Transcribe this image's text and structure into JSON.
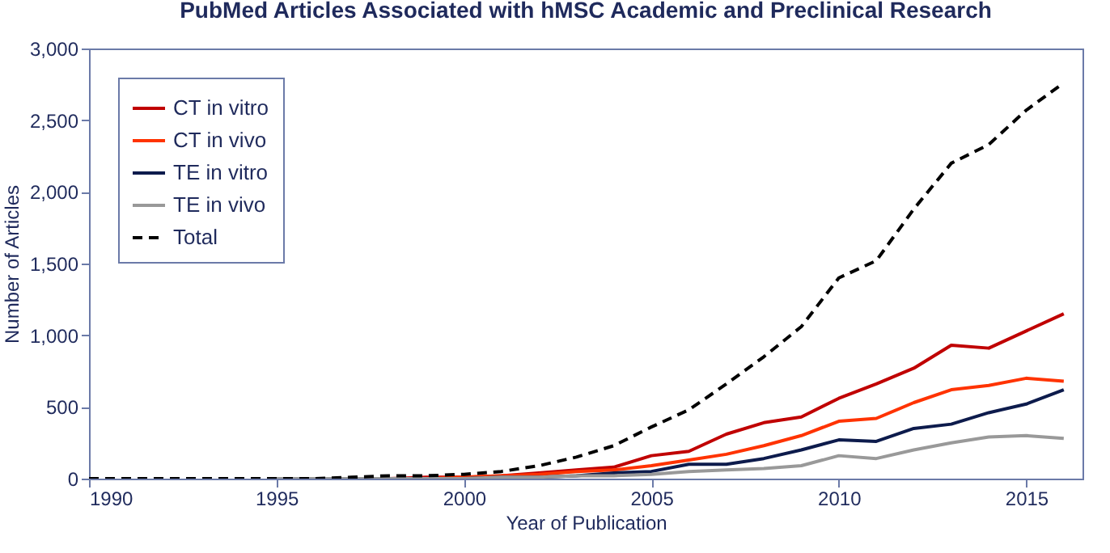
{
  "chart_data": {
    "type": "line",
    "title": "PubMed Articles Associated with hMSC Academic and Preclinical Research",
    "xlabel": "Year of Publication",
    "ylabel": "Number of Articles",
    "x": [
      1990,
      1991,
      1992,
      1993,
      1994,
      1995,
      1996,
      1997,
      1998,
      1999,
      2000,
      2001,
      2002,
      2003,
      2004,
      2005,
      2006,
      2007,
      2008,
      2009,
      2010,
      2011,
      2012,
      2013,
      2014,
      2015,
      2016
    ],
    "series": [
      {
        "name": "CT in vitro",
        "color": "#c00000",
        "values": [
          null,
          null,
          null,
          null,
          null,
          null,
          null,
          0,
          0,
          10,
          10,
          20,
          40,
          60,
          80,
          160,
          190,
          310,
          390,
          430,
          560,
          660,
          770,
          930,
          910,
          1030,
          1150
        ]
      },
      {
        "name": "CT in vivo",
        "color": "#ff3300",
        "values": [
          null,
          null,
          null,
          null,
          null,
          null,
          null,
          null,
          0,
          0,
          10,
          20,
          30,
          50,
          60,
          90,
          130,
          170,
          230,
          300,
          400,
          420,
          530,
          620,
          650,
          700,
          680
        ]
      },
      {
        "name": "TE in vitro",
        "color": "#0d1b4c",
        "values": [
          null,
          null,
          null,
          null,
          null,
          0,
          0,
          0,
          0,
          0,
          0,
          10,
          10,
          20,
          40,
          50,
          100,
          100,
          140,
          200,
          270,
          260,
          350,
          380,
          460,
          520,
          620
        ]
      },
      {
        "name": "TE in vivo",
        "color": "#999999",
        "values": [
          null,
          null,
          null,
          null,
          null,
          0,
          0,
          0,
          0,
          0,
          0,
          10,
          10,
          20,
          20,
          30,
          50,
          60,
          70,
          90,
          160,
          140,
          200,
          250,
          290,
          300,
          280
        ]
      },
      {
        "name": "Total",
        "color": "#000000",
        "line_style": "dashed",
        "values": [
          0,
          0,
          0,
          0,
          0,
          0,
          0,
          10,
          20,
          20,
          30,
          50,
          90,
          150,
          230,
          360,
          480,
          660,
          850,
          1060,
          1400,
          1520,
          1880,
          2200,
          2330,
          2570,
          2760
        ]
      }
    ],
    "xlim": [
      1990,
      2016.5
    ],
    "xticks": [
      1990,
      1995,
      2000,
      2005,
      2010,
      2015
    ],
    "ylim": [
      0,
      3000
    ],
    "yticks": [
      0,
      500,
      {
        "value": 1000,
        "label": "1,000"
      },
      {
        "value": 1500,
        "label": "1,500"
      },
      {
        "value": 2000,
        "label": "2,000"
      },
      {
        "value": 2500,
        "label": "2,500"
      },
      {
        "value": 3000,
        "label": "3,000"
      }
    ],
    "legend": "top left",
    "grid": false,
    "line_style": "solid"
  }
}
